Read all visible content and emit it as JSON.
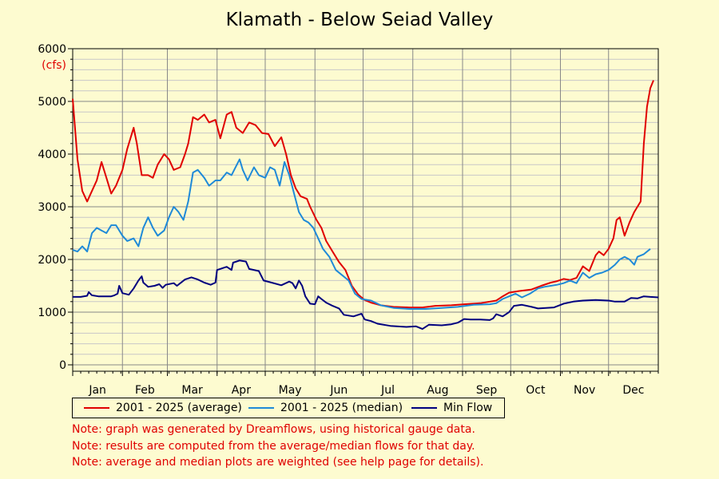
{
  "title": "Klamath - Below Seiad Valley",
  "y_unit": "(cfs)",
  "colors": {
    "average": "#e00000",
    "median": "#1f8ad8",
    "min": "#00007f",
    "grid_major": "#888888",
    "grid_minor": "#c8c8c8"
  },
  "chart_data": {
    "type": "line",
    "title": "Klamath - Below Seiad Valley",
    "ylabel": "(cfs)",
    "ylim": [
      0,
      6000
    ],
    "yticks": [
      0,
      1000,
      2000,
      3000,
      4000,
      5000,
      6000
    ],
    "xlim": [
      0,
      365
    ],
    "month_labels": [
      "Jan",
      "Feb",
      "Mar",
      "Apr",
      "May",
      "Jun",
      "Jul",
      "Aug",
      "Sep",
      "Oct",
      "Nov",
      "Dec"
    ],
    "month_starts": [
      0,
      31,
      59,
      90,
      120,
      151,
      181,
      212,
      243,
      273,
      304,
      334
    ],
    "grid": true,
    "legend_position": "bottom-left",
    "series": [
      {
        "name": "2001 - 2025 (average)",
        "key": "average",
        "points": [
          [
            0,
            5050
          ],
          [
            3,
            3900
          ],
          [
            6,
            3300
          ],
          [
            9,
            3100
          ],
          [
            12,
            3300
          ],
          [
            15,
            3500
          ],
          [
            18,
            3850
          ],
          [
            21,
            3550
          ],
          [
            24,
            3250
          ],
          [
            27,
            3400
          ],
          [
            31,
            3700
          ],
          [
            34,
            4100
          ],
          [
            38,
            4500
          ],
          [
            40,
            4200
          ],
          [
            43,
            3600
          ],
          [
            47,
            3600
          ],
          [
            50,
            3550
          ],
          [
            53,
            3800
          ],
          [
            57,
            4000
          ],
          [
            60,
            3900
          ],
          [
            63,
            3700
          ],
          [
            67,
            3750
          ],
          [
            70,
            4000
          ],
          [
            72,
            4200
          ],
          [
            75,
            4700
          ],
          [
            78,
            4650
          ],
          [
            82,
            4750
          ],
          [
            85,
            4600
          ],
          [
            89,
            4650
          ],
          [
            92,
            4300
          ],
          [
            96,
            4750
          ],
          [
            99,
            4800
          ],
          [
            102,
            4500
          ],
          [
            106,
            4400
          ],
          [
            110,
            4600
          ],
          [
            114,
            4550
          ],
          [
            118,
            4400
          ],
          [
            122,
            4380
          ],
          [
            126,
            4150
          ],
          [
            130,
            4320
          ],
          [
            133,
            4000
          ],
          [
            136,
            3600
          ],
          [
            139,
            3350
          ],
          [
            142,
            3200
          ],
          [
            146,
            3150
          ],
          [
            148,
            3000
          ],
          [
            152,
            2750
          ],
          [
            155,
            2600
          ],
          [
            158,
            2350
          ],
          [
            162,
            2150
          ],
          [
            166,
            1950
          ],
          [
            170,
            1800
          ],
          [
            174,
            1500
          ],
          [
            178,
            1330
          ],
          [
            182,
            1230
          ],
          [
            186,
            1180
          ],
          [
            192,
            1130
          ],
          [
            200,
            1100
          ],
          [
            210,
            1090
          ],
          [
            218,
            1090
          ],
          [
            226,
            1120
          ],
          [
            236,
            1130
          ],
          [
            244,
            1150
          ],
          [
            254,
            1170
          ],
          [
            264,
            1220
          ],
          [
            268,
            1300
          ],
          [
            272,
            1370
          ],
          [
            278,
            1400
          ],
          [
            286,
            1430
          ],
          [
            292,
            1500
          ],
          [
            298,
            1560
          ],
          [
            302,
            1590
          ],
          [
            306,
            1630
          ],
          [
            310,
            1610
          ],
          [
            314,
            1650
          ],
          [
            318,
            1870
          ],
          [
            322,
            1780
          ],
          [
            326,
            2080
          ],
          [
            328,
            2150
          ],
          [
            331,
            2080
          ],
          [
            334,
            2200
          ],
          [
            337,
            2400
          ],
          [
            339,
            2750
          ],
          [
            341,
            2800
          ],
          [
            344,
            2450
          ],
          [
            347,
            2700
          ],
          [
            350,
            2900
          ],
          [
            352,
            3000
          ],
          [
            354,
            3100
          ],
          [
            356,
            4200
          ],
          [
            358,
            4900
          ],
          [
            360,
            5250
          ],
          [
            362,
            5400
          ]
        ]
      },
      {
        "name": "2001 - 2025 (median)",
        "key": "median",
        "points": [
          [
            0,
            2180
          ],
          [
            3,
            2150
          ],
          [
            6,
            2250
          ],
          [
            9,
            2150
          ],
          [
            12,
            2500
          ],
          [
            15,
            2600
          ],
          [
            18,
            2550
          ],
          [
            21,
            2500
          ],
          [
            24,
            2650
          ],
          [
            27,
            2650
          ],
          [
            31,
            2450
          ],
          [
            34,
            2350
          ],
          [
            38,
            2400
          ],
          [
            41,
            2250
          ],
          [
            44,
            2600
          ],
          [
            47,
            2800
          ],
          [
            50,
            2600
          ],
          [
            53,
            2450
          ],
          [
            57,
            2550
          ],
          [
            60,
            2800
          ],
          [
            63,
            3000
          ],
          [
            66,
            2900
          ],
          [
            69,
            2750
          ],
          [
            72,
            3100
          ],
          [
            75,
            3650
          ],
          [
            78,
            3700
          ],
          [
            82,
            3550
          ],
          [
            85,
            3400
          ],
          [
            89,
            3500
          ],
          [
            92,
            3500
          ],
          [
            96,
            3650
          ],
          [
            99,
            3600
          ],
          [
            104,
            3900
          ],
          [
            106,
            3700
          ],
          [
            109,
            3500
          ],
          [
            113,
            3750
          ],
          [
            116,
            3600
          ],
          [
            120,
            3550
          ],
          [
            123,
            3750
          ],
          [
            126,
            3700
          ],
          [
            129,
            3400
          ],
          [
            132,
            3850
          ],
          [
            135,
            3600
          ],
          [
            138,
            3250
          ],
          [
            141,
            2900
          ],
          [
            144,
            2750
          ],
          [
            147,
            2700
          ],
          [
            150,
            2600
          ],
          [
            153,
            2400
          ],
          [
            156,
            2200
          ],
          [
            160,
            2050
          ],
          [
            164,
            1800
          ],
          [
            168,
            1700
          ],
          [
            172,
            1600
          ],
          [
            176,
            1350
          ],
          [
            180,
            1250
          ],
          [
            186,
            1220
          ],
          [
            192,
            1130
          ],
          [
            200,
            1080
          ],
          [
            210,
            1060
          ],
          [
            220,
            1060
          ],
          [
            230,
            1080
          ],
          [
            240,
            1100
          ],
          [
            250,
            1140
          ],
          [
            260,
            1150
          ],
          [
            264,
            1170
          ],
          [
            268,
            1250
          ],
          [
            272,
            1300
          ],
          [
            276,
            1350
          ],
          [
            280,
            1280
          ],
          [
            285,
            1350
          ],
          [
            290,
            1450
          ],
          [
            294,
            1480
          ],
          [
            298,
            1500
          ],
          [
            302,
            1520
          ],
          [
            306,
            1550
          ],
          [
            310,
            1600
          ],
          [
            314,
            1550
          ],
          [
            318,
            1750
          ],
          [
            322,
            1650
          ],
          [
            326,
            1720
          ],
          [
            330,
            1750
          ],
          [
            334,
            1800
          ],
          [
            338,
            1900
          ],
          [
            341,
            2000
          ],
          [
            344,
            2050
          ],
          [
            347,
            2000
          ],
          [
            350,
            1900
          ],
          [
            352,
            2050
          ],
          [
            356,
            2100
          ],
          [
            360,
            2200
          ]
        ]
      },
      {
        "name": "Min Flow",
        "key": "min",
        "points": [
          [
            0,
            1290
          ],
          [
            5,
            1290
          ],
          [
            9,
            1310
          ],
          [
            10,
            1380
          ],
          [
            12,
            1320
          ],
          [
            16,
            1300
          ],
          [
            24,
            1300
          ],
          [
            26,
            1320
          ],
          [
            28,
            1350
          ],
          [
            29,
            1500
          ],
          [
            31,
            1360
          ],
          [
            35,
            1330
          ],
          [
            38,
            1450
          ],
          [
            41,
            1600
          ],
          [
            43,
            1680
          ],
          [
            44,
            1560
          ],
          [
            47,
            1480
          ],
          [
            51,
            1500
          ],
          [
            54,
            1530
          ],
          [
            56,
            1460
          ],
          [
            58,
            1520
          ],
          [
            63,
            1550
          ],
          [
            65,
            1500
          ],
          [
            70,
            1620
          ],
          [
            74,
            1660
          ],
          [
            78,
            1620
          ],
          [
            82,
            1560
          ],
          [
            86,
            1520
          ],
          [
            89,
            1560
          ],
          [
            90,
            1800
          ],
          [
            96,
            1860
          ],
          [
            99,
            1800
          ],
          [
            100,
            1940
          ],
          [
            104,
            1980
          ],
          [
            108,
            1960
          ],
          [
            110,
            1820
          ],
          [
            116,
            1780
          ],
          [
            119,
            1600
          ],
          [
            124,
            1560
          ],
          [
            130,
            1510
          ],
          [
            135,
            1580
          ],
          [
            137,
            1550
          ],
          [
            139,
            1450
          ],
          [
            141,
            1600
          ],
          [
            143,
            1500
          ],
          [
            145,
            1300
          ],
          [
            148,
            1160
          ],
          [
            151,
            1150
          ],
          [
            153,
            1300
          ],
          [
            155,
            1250
          ],
          [
            158,
            1180
          ],
          [
            162,
            1120
          ],
          [
            166,
            1070
          ],
          [
            169,
            950
          ],
          [
            175,
            920
          ],
          [
            180,
            970
          ],
          [
            182,
            860
          ],
          [
            186,
            830
          ],
          [
            190,
            780
          ],
          [
            198,
            740
          ],
          [
            208,
            720
          ],
          [
            214,
            730
          ],
          [
            218,
            680
          ],
          [
            222,
            760
          ],
          [
            230,
            750
          ],
          [
            236,
            770
          ],
          [
            240,
            800
          ],
          [
            244,
            870
          ],
          [
            248,
            860
          ],
          [
            254,
            860
          ],
          [
            260,
            850
          ],
          [
            262,
            880
          ],
          [
            264,
            960
          ],
          [
            268,
            920
          ],
          [
            272,
            1000
          ],
          [
            275,
            1120
          ],
          [
            280,
            1140
          ],
          [
            286,
            1100
          ],
          [
            290,
            1070
          ],
          [
            300,
            1090
          ],
          [
            306,
            1160
          ],
          [
            312,
            1200
          ],
          [
            318,
            1220
          ],
          [
            326,
            1230
          ],
          [
            334,
            1220
          ],
          [
            338,
            1200
          ],
          [
            344,
            1200
          ],
          [
            348,
            1270
          ],
          [
            352,
            1260
          ],
          [
            356,
            1300
          ],
          [
            360,
            1290
          ],
          [
            365,
            1280
          ]
        ]
      }
    ]
  },
  "legend": [
    {
      "label": "2001 - 2025 (average)",
      "color": "#e00000"
    },
    {
      "label": "2001 - 2025 (median)",
      "color": "#1f8ad8"
    },
    {
      "label": "Min Flow",
      "color": "#00007f"
    }
  ],
  "notes": [
    "Note: graph was generated by Dreamflows, using historical gauge data.",
    "Note: results are computed from the average/median flows for that day.",
    "Note: average and median plots are weighted (see help page for details)."
  ]
}
